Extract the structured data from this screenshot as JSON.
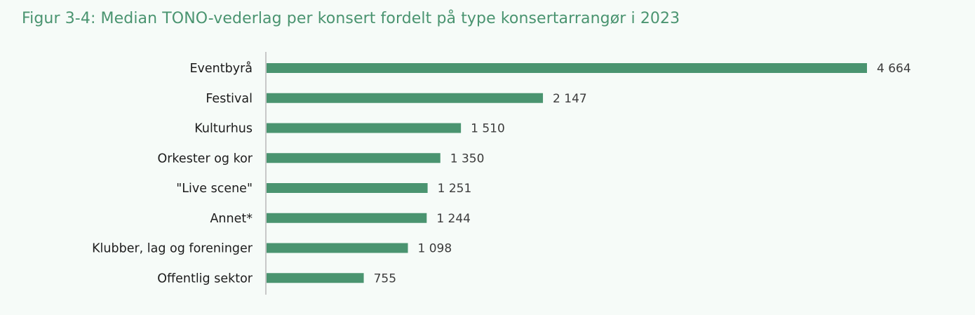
{
  "chart_data": {
    "type": "bar",
    "orientation": "horizontal",
    "title": "Figur 3-4: Median TONO-vederlag per konsert fordelt på type konsertarrangør i 2023",
    "categories": [
      "Eventbyrå",
      "Festival",
      "Kulturhus",
      "Orkester og kor",
      "\"Live scene\"",
      "Annet*",
      "Klubber, lag og foreninger",
      "Offentlig sektor"
    ],
    "values": [
      4664,
      2147,
      1510,
      1350,
      1251,
      1244,
      1098,
      755
    ],
    "value_labels": [
      "4 664",
      "2 147",
      "1 510",
      "1 350",
      "1 251",
      "1 244",
      "1 098",
      "755"
    ],
    "xlim": [
      0,
      4664
    ],
    "grid": false,
    "legend": "none",
    "colors": {
      "bar": "#4a9470",
      "title": "#4a9470",
      "axis": "#c8c8c8",
      "background": "#f6fbf8"
    }
  }
}
